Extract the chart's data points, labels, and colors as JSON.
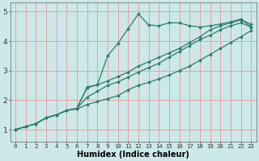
{
  "bg_color": "#cce8e8",
  "grid_color": "#e8a0a0",
  "line_color": "#2d7d6d",
  "marker": "D",
  "markersize": 2.0,
  "linewidth": 0.9,
  "xlabel": "Humidex (Indice chaleur)",
  "xlabel_fontsize": 7,
  "xlabel_fontweight": "bold",
  "ytick_fontsize": 6.5,
  "xtick_fontsize": 5.2,
  "yticks": [
    1,
    2,
    3,
    4,
    5
  ],
  "xticks": [
    0,
    1,
    2,
    3,
    4,
    5,
    6,
    7,
    8,
    9,
    10,
    11,
    12,
    13,
    14,
    15,
    16,
    17,
    18,
    19,
    20,
    21,
    22,
    23
  ],
  "ylim": [
    0.6,
    5.3
  ],
  "xlim": [
    -0.5,
    23.5
  ],
  "series": [
    [
      1.0,
      1.1,
      1.2,
      1.4,
      1.5,
      1.65,
      1.7,
      1.85,
      1.95,
      2.05,
      2.15,
      2.35,
      2.5,
      2.6,
      2.72,
      2.85,
      3.0,
      3.15,
      3.35,
      3.55,
      3.75,
      3.95,
      4.15,
      4.35
    ],
    [
      1.0,
      1.1,
      1.2,
      1.4,
      1.5,
      1.65,
      1.72,
      2.1,
      2.3,
      2.5,
      2.62,
      2.78,
      2.95,
      3.1,
      3.25,
      3.45,
      3.65,
      3.85,
      4.05,
      4.2,
      4.38,
      4.52,
      4.62,
      4.48
    ],
    [
      1.0,
      1.1,
      1.2,
      1.4,
      1.5,
      1.65,
      1.72,
      2.45,
      2.52,
      2.65,
      2.8,
      2.95,
      3.15,
      3.3,
      3.45,
      3.6,
      3.75,
      3.95,
      4.15,
      4.38,
      4.52,
      4.62,
      4.72,
      4.58
    ],
    [
      1.0,
      1.1,
      1.2,
      1.4,
      1.5,
      1.65,
      1.72,
      2.42,
      2.52,
      3.5,
      3.92,
      4.42,
      4.92,
      4.55,
      4.52,
      4.62,
      4.62,
      4.52,
      4.48,
      4.52,
      4.58,
      4.65,
      4.75,
      4.48
    ]
  ]
}
